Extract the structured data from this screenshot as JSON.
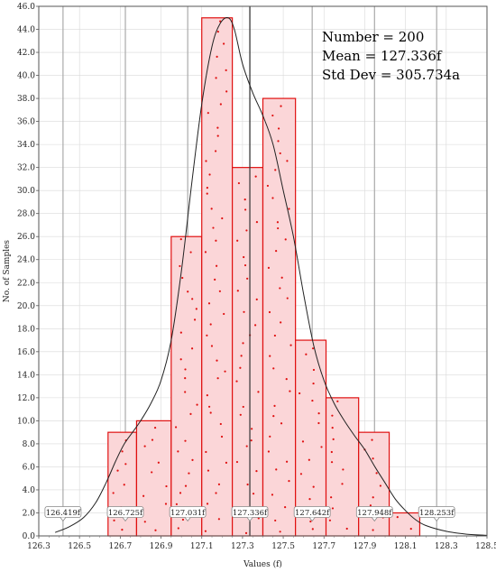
{
  "chart_data": {
    "type": "bar",
    "title": "",
    "xlabel": "Values (f)",
    "ylabel": "No. of Samples",
    "xlim": [
      126.3,
      128.5
    ],
    "ylim": [
      0,
      46
    ],
    "x_ticks": [
      "126.3",
      "126.5",
      "126.7",
      "126.9",
      "127.1",
      "127.3",
      "127.5",
      "127.7",
      "127.9",
      "128.1",
      "128.3",
      "128.5"
    ],
    "y_ticks": [
      "0.0",
      "2.0",
      "4.0",
      "6.0",
      "8.0",
      "10.0",
      "12.0",
      "14.0",
      "16.0",
      "18.0",
      "20.0",
      "22.0",
      "24.0",
      "26.0",
      "28.0",
      "30.0",
      "32.0",
      "34.0",
      "36.0",
      "38.0",
      "40.0",
      "42.0",
      "44.0",
      "46.0"
    ],
    "bins": [
      {
        "x0": 126.64,
        "x1": 126.78,
        "count": 9
      },
      {
        "x0": 126.78,
        "x1": 126.95,
        "count": 10
      },
      {
        "x0": 126.95,
        "x1": 127.1,
        "count": 26
      },
      {
        "x0": 127.1,
        "x1": 127.25,
        "count": 45
      },
      {
        "x0": 127.25,
        "x1": 127.4,
        "count": 32
      },
      {
        "x0": 127.4,
        "x1": 127.56,
        "count": 38
      },
      {
        "x0": 127.56,
        "x1": 127.71,
        "count": 17
      },
      {
        "x0": 127.71,
        "x1": 127.87,
        "count": 12
      },
      {
        "x0": 127.87,
        "x1": 128.02,
        "count": 9
      },
      {
        "x0": 128.02,
        "x1": 128.17,
        "count": 2
      }
    ],
    "sigma_markers": [
      {
        "value": 126.419,
        "label": "126.419f"
      },
      {
        "value": 126.725,
        "label": "126.725f"
      },
      {
        "value": 127.031,
        "label": "127.031f"
      },
      {
        "value": 127.336,
        "label": "127.336f"
      },
      {
        "value": 127.642,
        "label": "127.642f"
      },
      {
        "value": 127.948,
        "label": "127.948f"
      },
      {
        "value": 128.253,
        "label": "128.253f"
      }
    ],
    "mean_line": 127.336,
    "density_curve": {
      "x": [
        126.38,
        126.45,
        126.52,
        126.58,
        126.63,
        126.68,
        126.72,
        126.76,
        126.8,
        126.85,
        126.9,
        126.95,
        127.0,
        127.05,
        127.1,
        127.15,
        127.19,
        127.23,
        127.26,
        127.3,
        127.35,
        127.4,
        127.45,
        127.5,
        127.55,
        127.6,
        127.65,
        127.7,
        127.75,
        127.8,
        127.85,
        127.9,
        127.95,
        128.0,
        128.05,
        128.1,
        128.15,
        128.2,
        128.3,
        128.4,
        128.5
      ],
      "y": [
        0.3,
        0.8,
        1.6,
        2.9,
        4.6,
        6.6,
        8.0,
        9.0,
        10.0,
        11.5,
        13.5,
        17.0,
        23.0,
        30.5,
        37.5,
        42.5,
        44.5,
        45.0,
        44.0,
        41.0,
        38.5,
        36.5,
        34.0,
        30.0,
        26.0,
        21.0,
        16.5,
        13.5,
        11.5,
        10.0,
        8.7,
        7.5,
        6.0,
        4.6,
        3.2,
        2.2,
        1.4,
        0.9,
        0.4,
        0.15,
        0.05
      ]
    },
    "stats": {
      "number": "Number = 200",
      "mean": "Mean = 127.336f",
      "std_dev": "Std Dev = 305.734a"
    },
    "grid": true,
    "colors": {
      "bar_fill": "#fbd6d8",
      "bar_stroke": "#e01010",
      "dots": "#e01010",
      "curve": "#222222",
      "grid": "#d9d9d9",
      "marker_line": "#aaaaaa",
      "mean_line": "#333333"
    }
  }
}
